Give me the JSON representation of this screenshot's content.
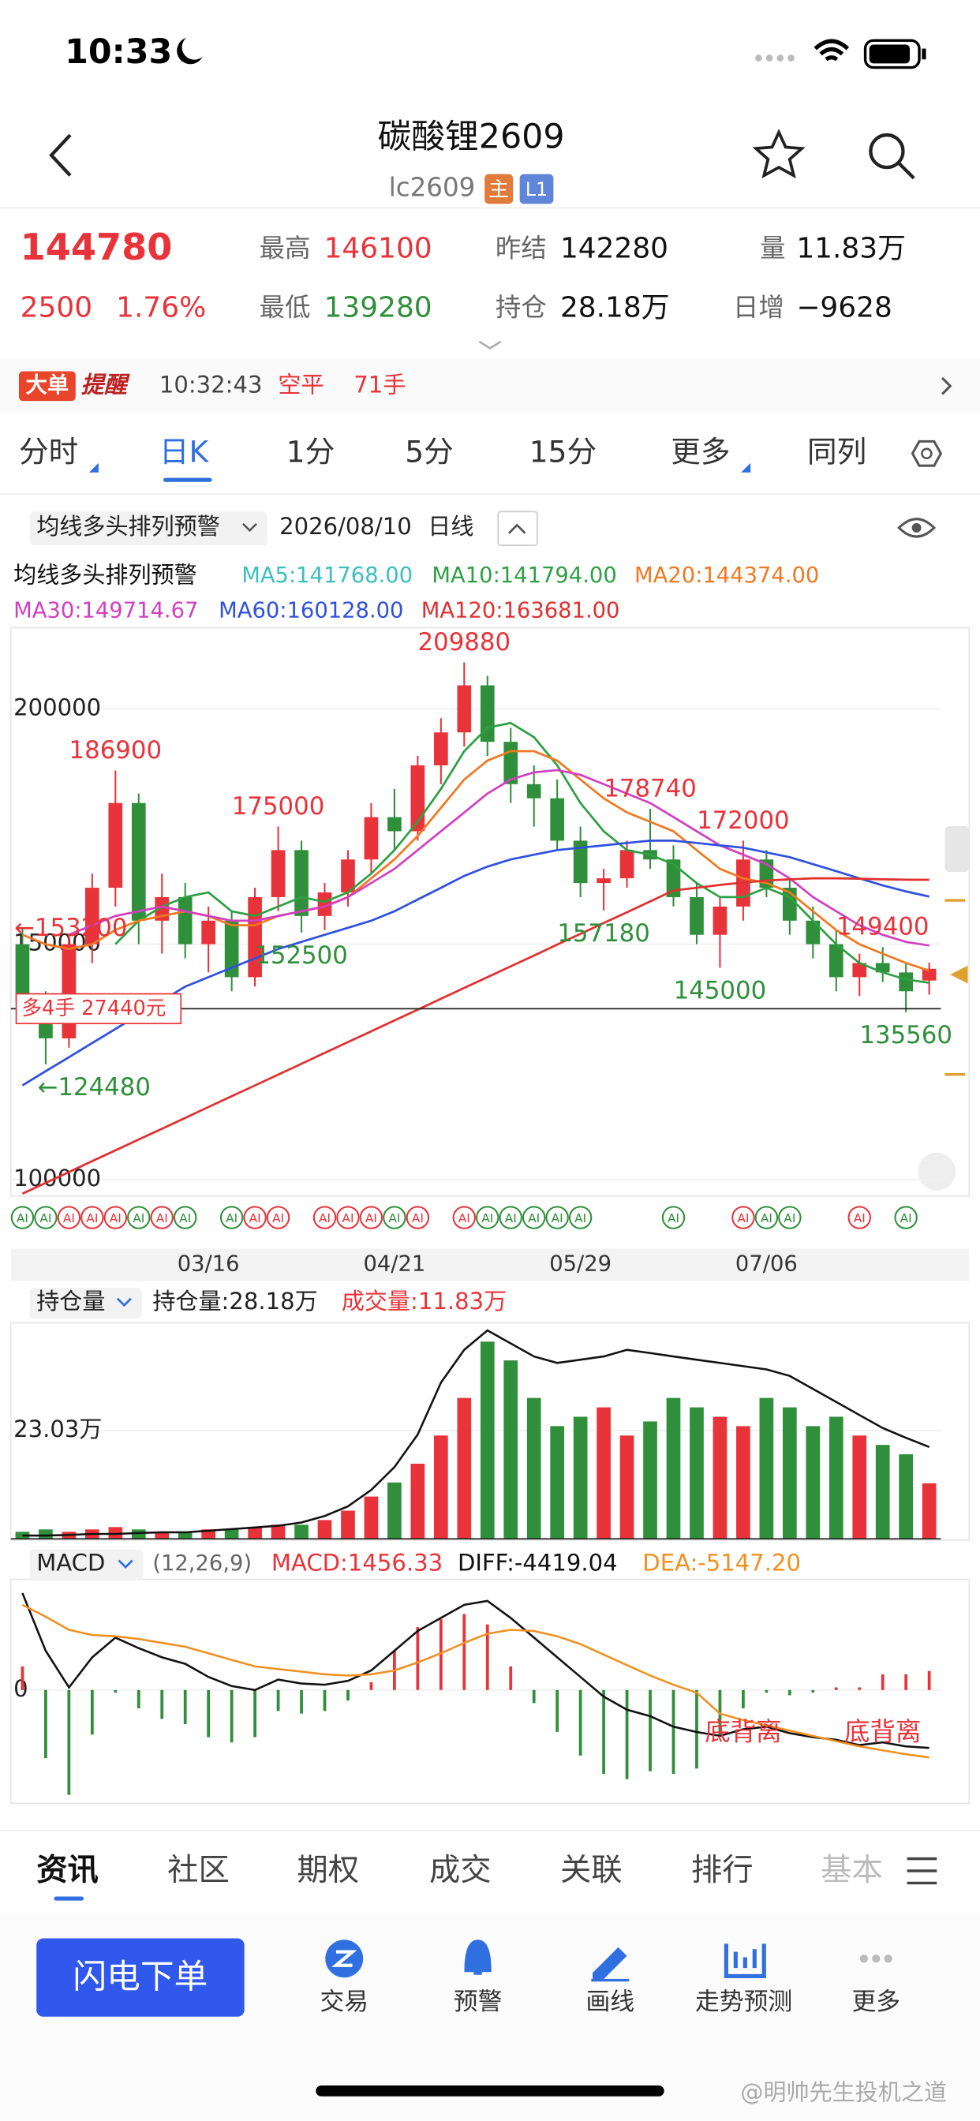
{
  "status_bar": {
    "time": "10:33"
  },
  "header": {
    "title": "碳酸锂2609",
    "code": "lc2609",
    "badge_main": "主",
    "badge_level": "L1"
  },
  "quote": {
    "price": "144780",
    "change": "2500",
    "change_pct": "1.76%",
    "high_label": "最高",
    "high": "146100",
    "low_label": "最低",
    "low": "139280",
    "prev_label": "昨结",
    "prev": "142280",
    "oi_label": "持仓",
    "oi": "28.18万",
    "vol_label": "量",
    "vol": "11.83万",
    "daily_label": "日增",
    "daily": "−9628"
  },
  "alert": {
    "tag": "大单",
    "tag2": "提醒",
    "time": "10:32:43",
    "action": "空平",
    "qty": "71手"
  },
  "tabs": [
    "分时",
    "日K",
    "1分",
    "5分",
    "15分",
    "更多",
    "同列"
  ],
  "toolbar": {
    "indicator": "均线多头排列预警",
    "date": "2026/08/10",
    "period": "日线"
  },
  "price_chart": {
    "type": "candlestick",
    "legend_title": "均线多头排列预警",
    "dates": [
      null,
      null,
      null,
      null,
      null,
      null,
      null,
      null,
      "03/16",
      null,
      null,
      null,
      null,
      null,
      null,
      null,
      "04/21",
      null,
      null,
      null,
      null,
      null,
      null,
      null,
      "05/29",
      null,
      null,
      null,
      null,
      null,
      null,
      null,
      "07/06",
      null,
      null,
      null,
      null,
      null,
      null,
      null
    ],
    "open": [
      150000,
      138000,
      130000,
      150000,
      162000,
      180000,
      155000,
      160000,
      150000,
      155000,
      143000,
      160000,
      170000,
      156000,
      161000,
      168000,
      177000,
      174000,
      188000,
      195000,
      205000,
      193000,
      184000,
      181000,
      172000,
      163000,
      164000,
      170000,
      168000,
      160000,
      152000,
      158000,
      168000,
      162000,
      155000,
      150000,
      143000,
      146000,
      144000,
      142280
    ],
    "high": [
      153200,
      140000,
      152000,
      165000,
      186900,
      182000,
      165000,
      163000,
      158000,
      157000,
      162000,
      175000,
      172000,
      163000,
      170000,
      180000,
      183000,
      190000,
      198000,
      209880,
      207000,
      196000,
      188000,
      185000,
      175000,
      166000,
      172000,
      178740,
      171000,
      163000,
      160000,
      172000,
      170000,
      164000,
      158000,
      153000,
      148000,
      149400,
      146000,
      146100
    ],
    "low": [
      136000,
      124480,
      128000,
      146000,
      158000,
      150000,
      148000,
      147000,
      144000,
      140000,
      141000,
      157000,
      152500,
      153000,
      158000,
      165000,
      170000,
      172000,
      184000,
      192000,
      190000,
      180000,
      175000,
      170000,
      160000,
      157180,
      162000,
      166000,
      158000,
      150000,
      145000,
      155000,
      160000,
      152000,
      147000,
      140000,
      139000,
      142000,
      135560,
      139280
    ],
    "close": [
      138000,
      130000,
      150000,
      162000,
      180000,
      155000,
      160000,
      150000,
      155000,
      143000,
      160000,
      170000,
      156000,
      161000,
      168000,
      177000,
      174000,
      188000,
      195000,
      205000,
      193000,
      184000,
      181000,
      172000,
      163000,
      164000,
      170000,
      168000,
      160000,
      152000,
      158000,
      168000,
      162000,
      155000,
      150000,
      143000,
      146000,
      144000,
      140000,
      144780
    ],
    "series": [
      {
        "name": "MA5:141768.00",
        "color": "#3bbfbf"
      },
      {
        "name": "MA10:141794.00",
        "color": "#2ea043",
        "values": [
          null,
          null,
          null,
          null,
          150000,
          155000,
          158000,
          160000,
          161000,
          157000,
          156000,
          158000,
          160000,
          159000,
          161000,
          165000,
          170000,
          176000,
          183000,
          191000,
          196000,
          197000,
          194000,
          188000,
          180000,
          174000,
          170000,
          169000,
          167000,
          163000,
          160000,
          160000,
          162000,
          160000,
          155000,
          150000,
          146000,
          144000,
          142500,
          141794
        ]
      },
      {
        "name": "MA20:144374.00",
        "color": "#f07820",
        "values": [
          152000,
          150000,
          149000,
          150000,
          153000,
          155000,
          156000,
          157000,
          156000,
          154000,
          154000,
          156000,
          157000,
          158000,
          160000,
          164000,
          168000,
          173000,
          179000,
          185000,
          189000,
          191000,
          191000,
          189000,
          185000,
          181000,
          178000,
          176000,
          174000,
          170000,
          166000,
          164000,
          163000,
          161000,
          157000,
          153000,
          150000,
          148000,
          146000,
          144374
        ]
      },
      {
        "name": "MA30:149714.67",
        "color": "#d23fc0",
        "values": [
          null,
          null,
          152000,
          154000,
          156000,
          157000,
          158000,
          157000,
          156000,
          155000,
          155000,
          156000,
          157000,
          158000,
          160000,
          163000,
          166000,
          170000,
          174000,
          178000,
          182000,
          185000,
          186500,
          187000,
          186000,
          184000,
          182000,
          180000,
          177000,
          174000,
          171000,
          169000,
          167000,
          164000,
          160000,
          157000,
          154000,
          152000,
          150500,
          149714.67
        ]
      },
      {
        "name": "MA60:160128.00",
        "color": "#3050e0",
        "values": [
          120000,
          123000,
          126000,
          129000,
          132000,
          135000,
          138000,
          141000,
          143000,
          145000,
          147000,
          149000,
          150500,
          152000,
          153500,
          155000,
          157000,
          159500,
          162000,
          164500,
          166500,
          168000,
          169000,
          170000,
          170500,
          171000,
          171500,
          172000,
          172000,
          171500,
          171000,
          170500,
          169500,
          168500,
          167000,
          165500,
          164000,
          162500,
          161200,
          160128
        ]
      },
      {
        "name": "MA120:163681.00",
        "color": "#e03030",
        "values": [
          97000,
          99300,
          101600,
          103900,
          106200,
          108500,
          110800,
          113100,
          115400,
          117700,
          120000,
          122300,
          124600,
          126900,
          129200,
          131500,
          133800,
          136100,
          138400,
          140700,
          143000,
          145300,
          147600,
          149900,
          152200,
          154500,
          156800,
          159100,
          161400,
          162000,
          162600,
          163100,
          163500,
          163800,
          164000,
          164000,
          163900,
          163800,
          163700,
          163681
        ]
      }
    ],
    "ylim": [
      96800,
      217250
    ],
    "yticks": [
      100000,
      150000,
      200000
    ],
    "colors": {
      "up": "#e8333a",
      "down": "#2f8f3a"
    },
    "high_labels": [
      {
        "index": 19,
        "value": 209880
      },
      {
        "index": 4,
        "value": 186900
      },
      {
        "index": 11,
        "value": 175000
      },
      {
        "index": 27,
        "value": 178740
      },
      {
        "index": 31,
        "value": 172000
      },
      {
        "index": 37,
        "value": 149400
      },
      {
        "index": 0,
        "value": 153200,
        "label": "←153200"
      }
    ],
    "low_labels": [
      {
        "index": 25,
        "value": 157180
      },
      {
        "index": 12,
        "value": 152500
      },
      {
        "index": 30,
        "value": 145000
      },
      {
        "index": 38,
        "value": 135560
      },
      {
        "index": 1,
        "value": 124480,
        "label": "←124480"
      }
    ],
    "position": {
      "label": "多4手 27440元",
      "value": 136300
    }
  },
  "ai_markers": {
    "label": "AI",
    "indices": [
      0,
      1,
      2,
      3,
      4,
      5,
      6,
      7,
      9,
      10,
      11,
      13,
      14,
      15,
      16,
      17,
      19,
      20,
      21,
      22,
      23,
      24,
      28,
      31,
      32,
      33,
      36,
      38
    ]
  },
  "volume_chart": {
    "type": "bar",
    "header": "持仓量",
    "oi_text": "持仓量:28.18万",
    "vol_text": "成交量:11.83万",
    "values": [
      1.5,
      2,
      1.5,
      2,
      2.5,
      2,
      1.5,
      1.5,
      2,
      2,
      2.5,
      3,
      3,
      4,
      6,
      9,
      12,
      16,
      22,
      30,
      42,
      38,
      30,
      24,
      26,
      28,
      22,
      25,
      30,
      28,
      26,
      24,
      30,
      28,
      24,
      26,
      22,
      20,
      18,
      11.83
    ],
    "ylim": [
      0,
      46
    ],
    "yticks": [
      {
        "value": 23.03,
        "label": "23.03万"
      }
    ],
    "oi_line": {
      "color": "#111111",
      "y2lim": [
        0,
        66.3
      ],
      "values": [
        1,
        1,
        1.2,
        1.5,
        1.5,
        1.8,
        2,
        2,
        2.5,
        3,
        3.5,
        4,
        5,
        7,
        10,
        15,
        22,
        32,
        48,
        58,
        64,
        60,
        56,
        54,
        55,
        56,
        58,
        57,
        56,
        55,
        54,
        53,
        52,
        50,
        46,
        42,
        38,
        34,
        31,
        28.18
      ]
    }
  },
  "macd_chart": {
    "type": "macd",
    "header": "MACD",
    "params": "(12,26,9)",
    "macd_text": "MACD:1456.33",
    "diff_text": "DIFF:-4419.04",
    "dea_text": "DEA:-5147.20",
    "histogram": [
      1800,
      -5200,
      -8000,
      -3400,
      -200,
      -1400,
      -2200,
      -2600,
      -3600,
      -4000,
      -3600,
      -1600,
      -1800,
      -1600,
      -800,
      600,
      3000,
      4800,
      5400,
      5800,
      5000,
      1800,
      -1000,
      -3200,
      -5000,
      -6400,
      -6800,
      -6200,
      -6400,
      -6000,
      -3400,
      -1400,
      -200,
      -400,
      -200,
      200,
      200,
      1200,
      1200,
      1456.33
    ],
    "diff": {
      "color": "#111111",
      "values": [
        7400,
        3000,
        200,
        2500,
        4000,
        3200,
        2500,
        2000,
        1000,
        300,
        0,
        800,
        500,
        400,
        700,
        1500,
        3000,
        4500,
        5500,
        6500,
        6800,
        5500,
        4000,
        2500,
        1000,
        -500,
        -1500,
        -2000,
        -2800,
        -3200,
        -3500,
        -3000,
        -2800,
        -3300,
        -3600,
        -3800,
        -4200,
        -4000,
        -4300,
        -4419.04
      ]
    },
    "dea": {
      "color": "#f09020",
      "values": [
        6500,
        5600,
        4600,
        4200,
        4100,
        3900,
        3600,
        3300,
        2800,
        2300,
        1800,
        1600,
        1400,
        1200,
        1100,
        1200,
        1500,
        2100,
        2800,
        3600,
        4300,
        4600,
        4500,
        4100,
        3500,
        2700,
        1900,
        1100,
        400,
        -200,
        -1800,
        -2300,
        -2700,
        -3100,
        -3500,
        -3900,
        -4300,
        -4600,
        -4900,
        -5147.2
      ]
    },
    "colors": {
      "up": "#e8333a",
      "down": "#2f8f3a"
    },
    "ylim": [
      -8550,
      8450
    ],
    "yticks": [
      0
    ],
    "annotations": [
      {
        "index": 31,
        "label": "底背离"
      },
      {
        "index": 37,
        "label": "底背离"
      }
    ]
  },
  "news_tabs": [
    "资讯",
    "社区",
    "期权",
    "成交",
    "关联",
    "排行",
    "基本"
  ],
  "order_button": "闪电下单",
  "nav": [
    "交易",
    "预警",
    "画线",
    "走势预测",
    "更多"
  ],
  "watermark": "@明帅先生投机之道"
}
